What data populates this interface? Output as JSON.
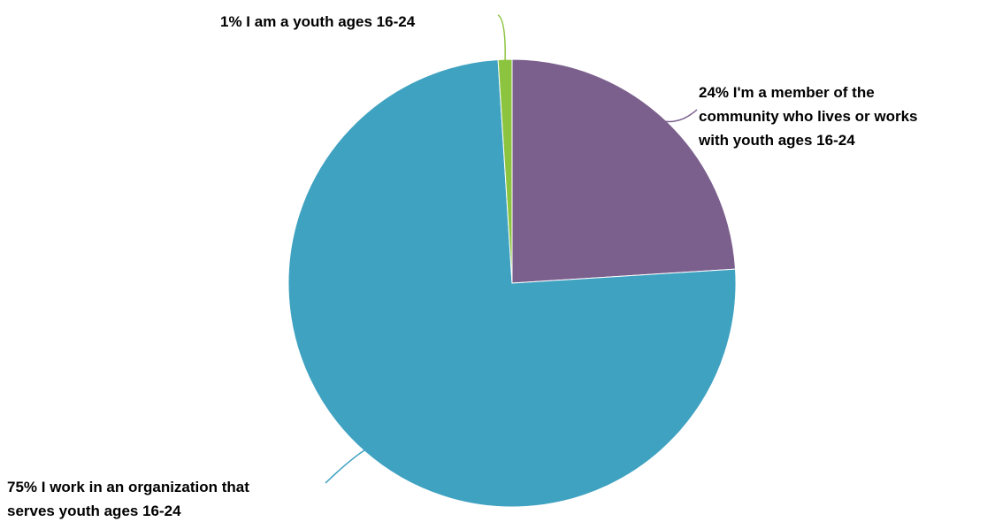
{
  "chart_data": {
    "type": "pie",
    "title": "",
    "start_angle_deg": 0,
    "direction": "clockwise",
    "slices": [
      {
        "label": "I'm a member of the community who lives or works with youth ages 16-24",
        "value": 24,
        "display_lines": [
          "24% I'm a member of the",
          "community who lives or works",
          "with youth ages 16-24"
        ],
        "color": "#7b5f8c"
      },
      {
        "label": "I work in an organization that serves youth ages 16-24",
        "value": 75,
        "display_lines": [
          "75% I work in an organization that",
          "serves youth ages 16-24"
        ],
        "color": "#3fa2c1"
      },
      {
        "label": "I am a youth ages 16-24",
        "value": 1,
        "display_lines": [
          "1% I am a youth ages 16-24"
        ],
        "color": "#8cc43f"
      }
    ],
    "legend": "none",
    "labels": "outside-with-leader-lines"
  }
}
